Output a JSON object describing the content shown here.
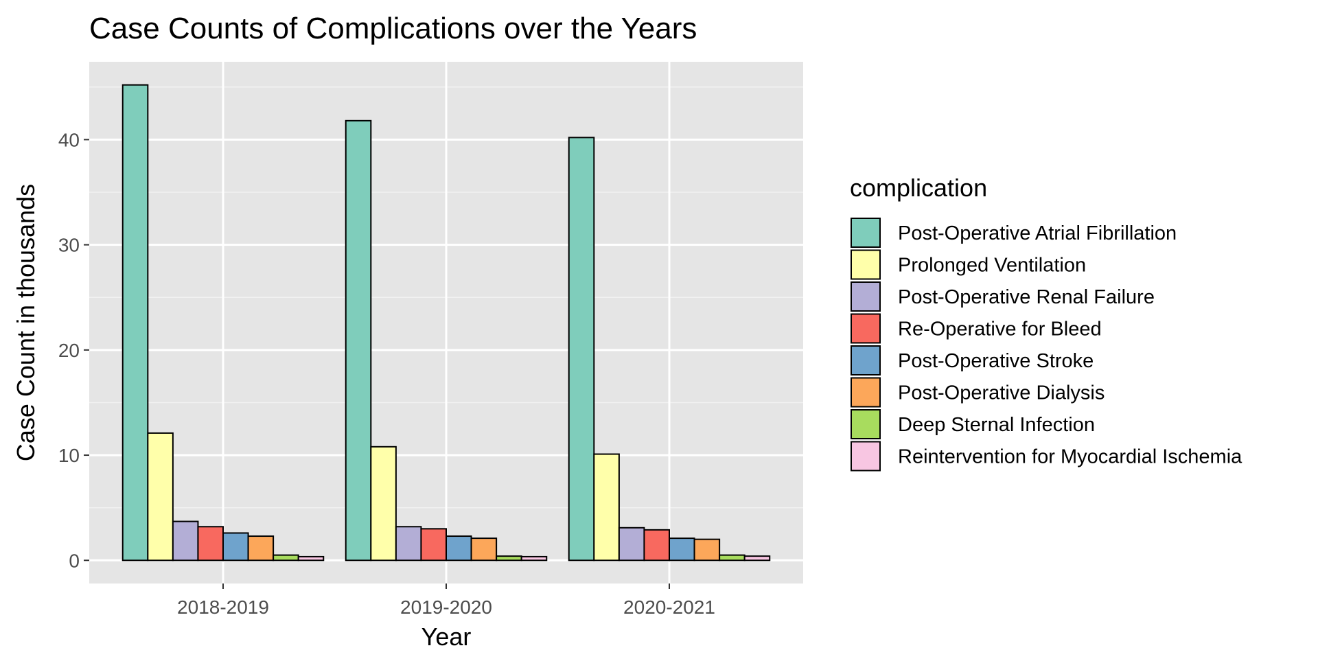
{
  "chart_data": {
    "type": "bar",
    "title": "Case Counts of Complications over the Years",
    "xlabel": "Year",
    "ylabel": "Case Count in thousands",
    "categories": [
      "2018-2019",
      "2019-2020",
      "2020-2021"
    ],
    "yticks": [
      0,
      10,
      20,
      30,
      40
    ],
    "ylim": [
      -2.2,
      47.4
    ],
    "grid": true,
    "legend": {
      "title": "complication",
      "position": "right"
    },
    "series": [
      {
        "name": "Post-Operative Atrial Fibrillation",
        "color": "#7fcdbb",
        "values": [
          45.2,
          41.8,
          40.2
        ]
      },
      {
        "name": "Prolonged Ventilation",
        "color": "#ffffaa",
        "values": [
          12.1,
          10.8,
          10.1
        ]
      },
      {
        "name": "Post-Operative Renal Failure",
        "color": "#b3aed6",
        "values": [
          3.7,
          3.2,
          3.1
        ]
      },
      {
        "name": "Re-Operative for Bleed",
        "color": "#f8695f",
        "values": [
          3.2,
          3.0,
          2.9
        ]
      },
      {
        "name": "Post-Operative Stroke",
        "color": "#6fa3cc",
        "values": [
          2.6,
          2.3,
          2.1
        ]
      },
      {
        "name": "Post-Operative Dialysis",
        "color": "#fca75a",
        "values": [
          2.3,
          2.1,
          2.0
        ]
      },
      {
        "name": "Deep Sternal Infection",
        "color": "#a8dc5e",
        "values": [
          0.5,
          0.4,
          0.5
        ]
      },
      {
        "name": "Reintervention for Myocardial Ischemia",
        "color": "#f8c6e2",
        "values": [
          0.35,
          0.35,
          0.4
        ]
      }
    ]
  }
}
